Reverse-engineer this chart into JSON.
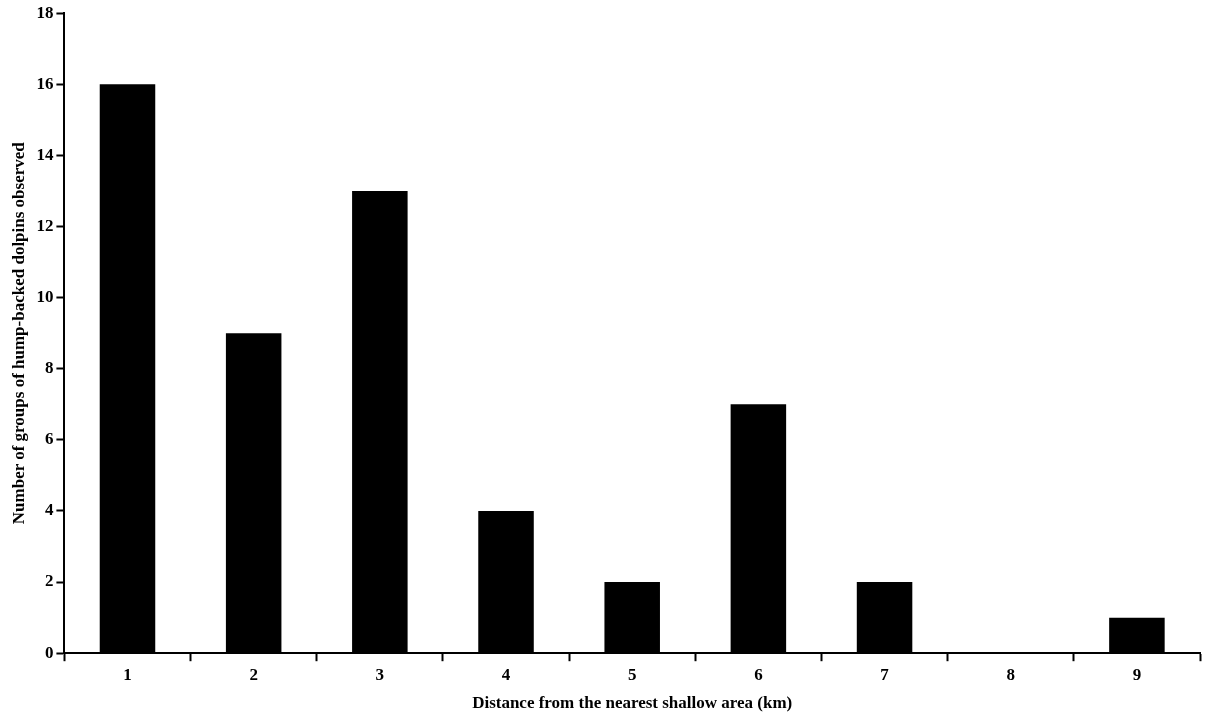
{
  "chart_data": {
    "type": "bar",
    "xlabel": "Distance from the nearest shallow area (km)",
    "ylabel": "Number of groups of hump-backed dolpins observed",
    "categories": [
      "1",
      "2",
      "3",
      "4",
      "5",
      "6",
      "7",
      "8",
      "9"
    ],
    "values": [
      16,
      9,
      13,
      4,
      2,
      7,
      2,
      0,
      1
    ],
    "color": "#000000",
    "ylim": [
      0,
      18
    ],
    "yticks": [
      0,
      2,
      4,
      6,
      8,
      10,
      12,
      14,
      16,
      18
    ]
  }
}
